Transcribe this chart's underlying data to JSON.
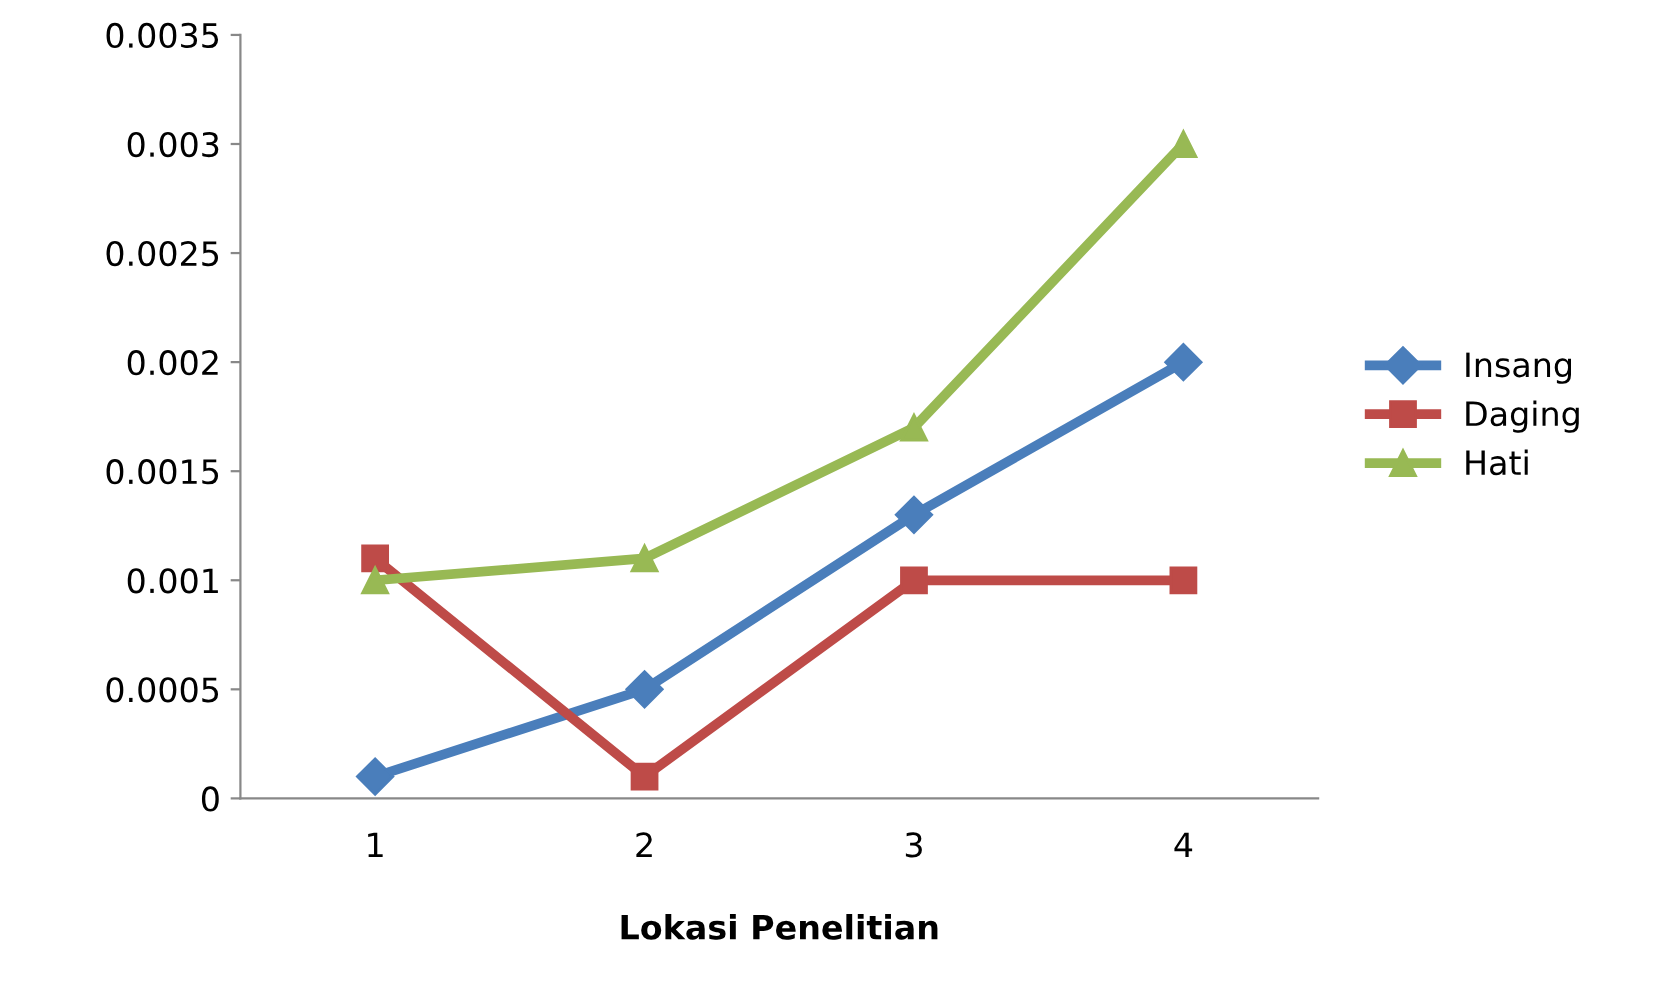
{
  "chart_data": {
    "type": "line",
    "xlabel": "Lokasi Penelitian",
    "categories": [
      "1",
      "2",
      "3",
      "4"
    ],
    "series": [
      {
        "name": "Insang",
        "color": "#4a7ebb",
        "marker": "diamond",
        "values": [
          0.0001,
          0.0005,
          0.0013,
          0.002
        ]
      },
      {
        "name": "Daging",
        "color": "#be4b48",
        "marker": "square",
        "values": [
          0.0011,
          0.0001,
          0.001,
          0.001
        ]
      },
      {
        "name": "Hati",
        "color": "#98b954",
        "marker": "triangle",
        "values": [
          0.001,
          0.0011,
          0.0017,
          0.003
        ]
      }
    ],
    "ylim": [
      0,
      0.0035
    ],
    "yticks": [
      0,
      0.0005,
      0.001,
      0.0015,
      0.002,
      0.0025,
      0.003,
      0.0035
    ],
    "grid": false,
    "legend": "right"
  }
}
